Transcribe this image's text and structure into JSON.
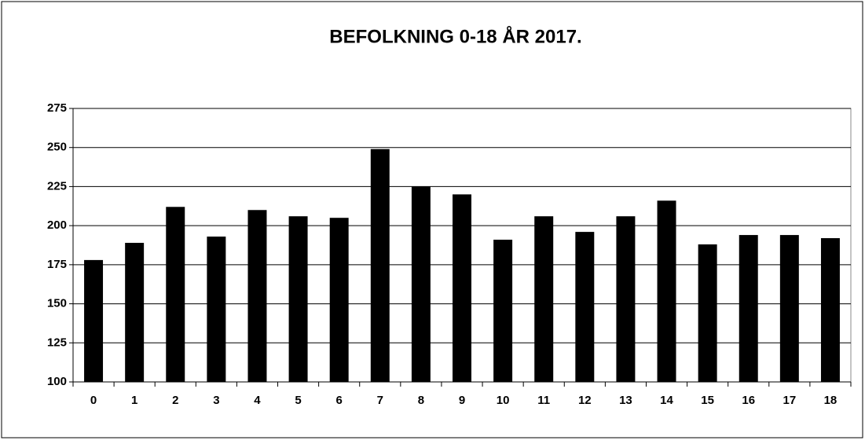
{
  "chart_data": {
    "type": "bar",
    "title": "BEFOLKNING 0-18 ÅR 2017.",
    "categories": [
      "0",
      "1",
      "2",
      "3",
      "4",
      "5",
      "6",
      "7",
      "8",
      "9",
      "10",
      "11",
      "12",
      "13",
      "14",
      "15",
      "16",
      "17",
      "18"
    ],
    "values": [
      178,
      189,
      212,
      193,
      210,
      206,
      205,
      249,
      225,
      220,
      191,
      206,
      196,
      206,
      216,
      188,
      194,
      194,
      192
    ],
    "color": "#000000",
    "ylim": [
      100,
      275
    ],
    "yticks": [
      100,
      125,
      150,
      175,
      200,
      225,
      250,
      275
    ],
    "grid": true
  }
}
